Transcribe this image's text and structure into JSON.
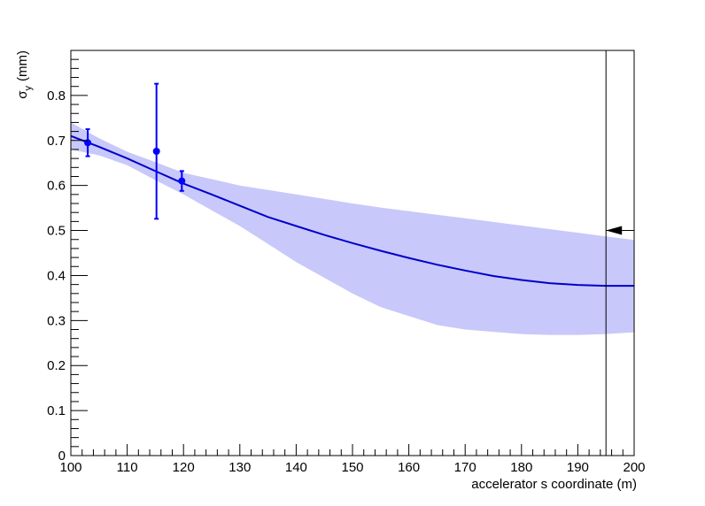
{
  "chart_data": {
    "type": "line",
    "title": "",
    "xlabel": "accelerator s coordinate (m)",
    "ylabel_symbol": "σ",
    "ylabel_subscript": "y",
    "ylabel_unit": "(mm)",
    "xlim": [
      100,
      200
    ],
    "ylim": [
      0,
      0.9
    ],
    "x_ticks": [
      100,
      110,
      120,
      130,
      140,
      150,
      160,
      170,
      180,
      190,
      200
    ],
    "x_tick_labels": [
      "100",
      "110",
      "120",
      "130",
      "140",
      "150",
      "160",
      "170",
      "180",
      "190",
      "200"
    ],
    "y_ticks": [
      0,
      0.1,
      0.2,
      0.3,
      0.4,
      0.5,
      0.6,
      0.7,
      0.8
    ],
    "y_tick_labels": [
      "0",
      "0.1",
      "0.2",
      "0.3",
      "0.4",
      "0.5",
      "0.6",
      "0.7",
      "0.8"
    ],
    "grid": false,
    "colors": {
      "fit": "#0000cc",
      "band": "#c8c8fa",
      "points": "#0000ff",
      "marker": "#000000"
    },
    "measurements": [
      {
        "x": 103,
        "y": 0.695,
        "yerr_low": 0.03,
        "yerr_high": 0.03
      },
      {
        "x": 115.2,
        "y": 0.676,
        "yerr_low": 0.15,
        "yerr_high": 0.15
      },
      {
        "x": 119.7,
        "y": 0.61,
        "yerr_low": 0.022,
        "yerr_high": 0.022
      }
    ],
    "fit_curve": {
      "x": [
        100,
        105,
        110,
        115,
        120,
        125,
        130,
        135,
        140,
        145,
        150,
        155,
        160,
        165,
        170,
        175,
        180,
        185,
        190,
        195,
        200
      ],
      "y": [
        0.71,
        0.686,
        0.66,
        0.632,
        0.604,
        0.58,
        0.555,
        0.53,
        0.51,
        0.49,
        0.472,
        0.455,
        0.439,
        0.424,
        0.411,
        0.399,
        0.39,
        0.383,
        0.379,
        0.377,
        0.377
      ],
      "lo": [
        0.68,
        0.667,
        0.645,
        0.612,
        0.58,
        0.545,
        0.51,
        0.47,
        0.43,
        0.395,
        0.36,
        0.33,
        0.31,
        0.29,
        0.28,
        0.275,
        0.27,
        0.268,
        0.268,
        0.27,
        0.274
      ],
      "hi": [
        0.74,
        0.705,
        0.675,
        0.652,
        0.628,
        0.614,
        0.6,
        0.59,
        0.58,
        0.57,
        0.56,
        0.551,
        0.543,
        0.535,
        0.527,
        0.519,
        0.511,
        0.503,
        0.495,
        0.487,
        0.479
      ]
    },
    "reference_marker": {
      "x": 195,
      "y": 0.5,
      "direction": "left"
    }
  }
}
